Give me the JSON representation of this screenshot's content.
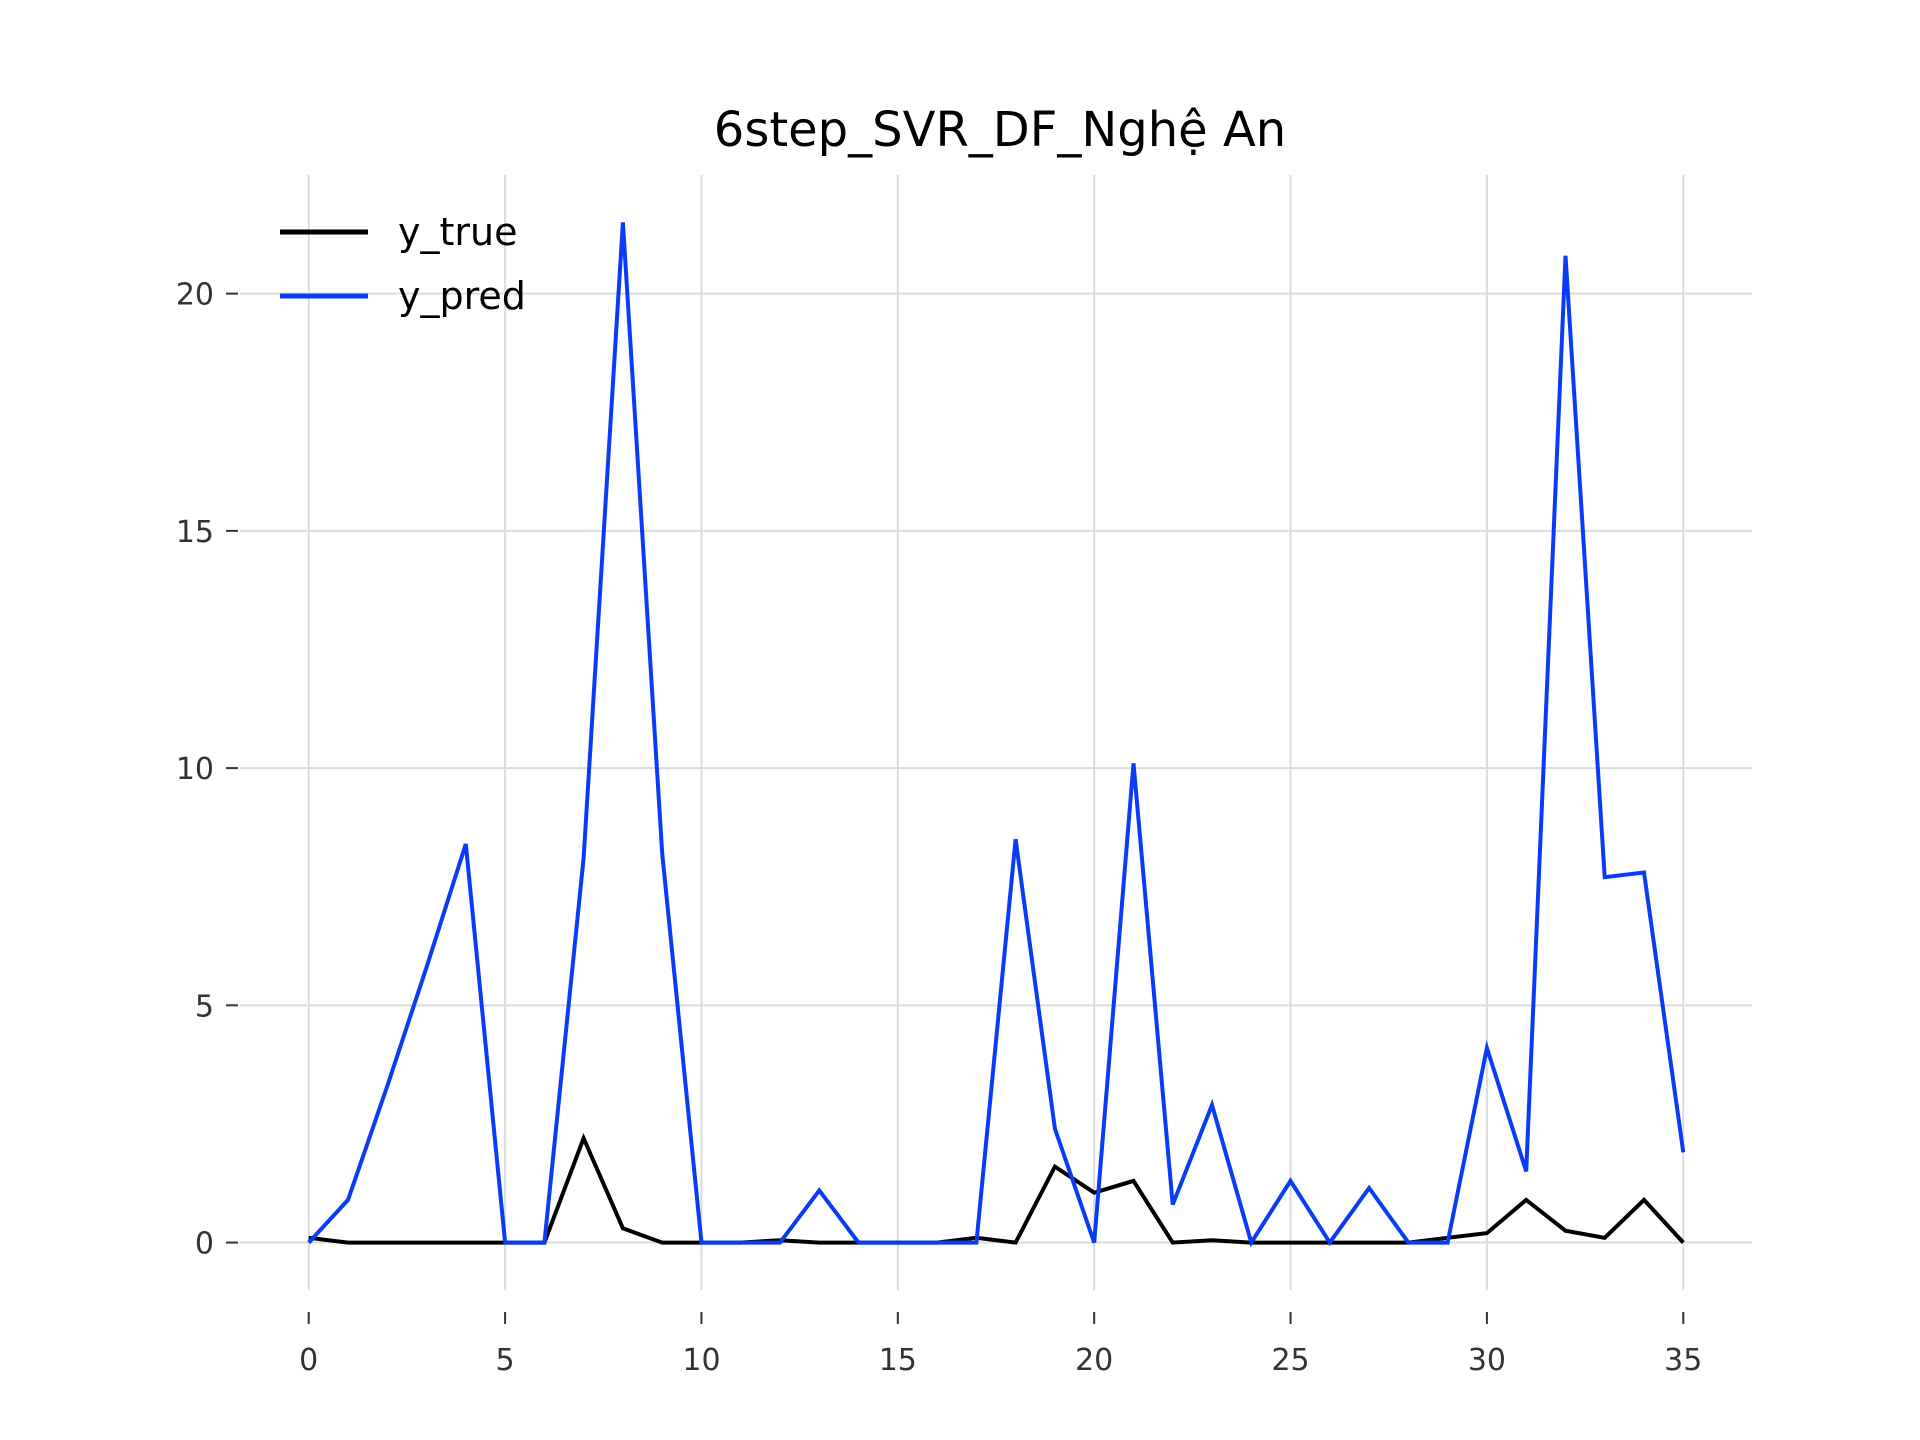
{
  "chart_data": {
    "type": "line",
    "title": "6step_SVR_DF_Nghệ An",
    "xlabel": "",
    "ylabel": "",
    "x": [
      0,
      1,
      2,
      3,
      4,
      5,
      6,
      7,
      8,
      9,
      10,
      11,
      12,
      13,
      14,
      15,
      16,
      17,
      18,
      19,
      20,
      21,
      22,
      23,
      24,
      25,
      26,
      27,
      28,
      29,
      30,
      31,
      32,
      33,
      34,
      35
    ],
    "xticks": [
      0,
      5,
      10,
      15,
      20,
      25,
      30,
      35
    ],
    "yticks": [
      0,
      5,
      10,
      15,
      20
    ],
    "xlim": [
      -1.75,
      36.75
    ],
    "ylim": [
      -1.0,
      22.5
    ],
    "grid": true,
    "legend_position": "upper-left",
    "series": [
      {
        "name": "y_true",
        "color": "#000000",
        "values": [
          0.1,
          0.0,
          0.0,
          0.0,
          0.0,
          0.0,
          0.0,
          2.2,
          0.3,
          0.0,
          0.0,
          0.0,
          0.05,
          0.0,
          0.0,
          0.0,
          0.0,
          0.1,
          0.0,
          1.6,
          1.05,
          1.3,
          0.0,
          0.05,
          0.0,
          0.0,
          0.0,
          0.0,
          0.0,
          0.1,
          0.2,
          0.9,
          0.25,
          0.1,
          0.9,
          0.0
        ]
      },
      {
        "name": "y_pred",
        "color": "#0a3cf5",
        "values": [
          0.0,
          0.9,
          3.3,
          5.8,
          8.4,
          0.0,
          0.0,
          8.1,
          21.5,
          8.2,
          0.0,
          0.0,
          0.0,
          1.1,
          0.0,
          0.0,
          0.0,
          0.0,
          8.5,
          2.4,
          0.0,
          10.1,
          0.8,
          2.9,
          0.0,
          1.3,
          0.0,
          1.15,
          0.0,
          0.0,
          4.1,
          1.5,
          20.8,
          7.7,
          7.8,
          1.9
        ]
      }
    ]
  }
}
